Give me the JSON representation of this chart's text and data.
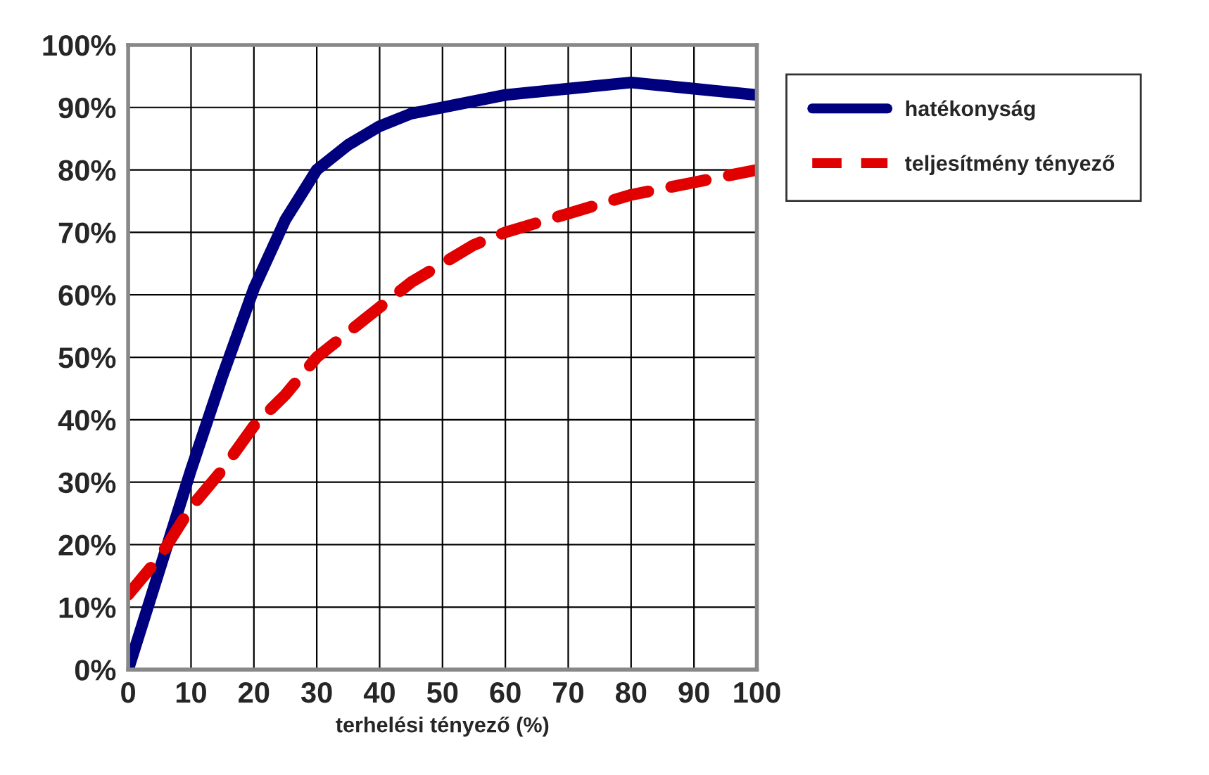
{
  "chart_data": {
    "type": "line",
    "xlabel": "terhelési tényező (%)",
    "xlim": [
      0,
      100
    ],
    "xticks": [
      0,
      10,
      20,
      30,
      40,
      50,
      60,
      70,
      80,
      90,
      100
    ],
    "ylim": [
      0,
      100
    ],
    "yticks": [
      {
        "value": 0,
        "label": "0%"
      },
      {
        "value": 10,
        "label": "10%"
      },
      {
        "value": 20,
        "label": "20%"
      },
      {
        "value": 30,
        "label": "30%"
      },
      {
        "value": 40,
        "label": "40%"
      },
      {
        "value": 50,
        "label": "50%"
      },
      {
        "value": 60,
        "label": "60%"
      },
      {
        "value": 70,
        "label": "70%"
      },
      {
        "value": 80,
        "label": "80%"
      },
      {
        "value": 90,
        "label": "90%"
      },
      {
        "value": 100,
        "label": "100%"
      }
    ],
    "grid": true,
    "legend": "top right",
    "marker": "none",
    "series": [
      {
        "name": "hatékonyság",
        "color": "#00007f",
        "line_style": "solid",
        "x": [
          0,
          5,
          10,
          15,
          20,
          25,
          30,
          35,
          40,
          45,
          50,
          60,
          70,
          80,
          90,
          100
        ],
        "values": [
          0,
          16,
          32,
          47,
          61,
          72,
          80,
          84,
          87,
          89,
          90,
          92,
          93,
          94,
          93,
          92
        ]
      },
      {
        "name": "teljesítmény tényező",
        "color": "#e00000",
        "line_style": "dashed",
        "x": [
          0,
          5,
          10,
          15,
          20,
          25,
          30,
          35,
          40,
          45,
          50,
          55,
          60,
          70,
          80,
          90,
          100
        ],
        "values": [
          12,
          18,
          26,
          32,
          39,
          44,
          50,
          54,
          58,
          62,
          65,
          68,
          70,
          73,
          76,
          78,
          80
        ]
      }
    ]
  }
}
